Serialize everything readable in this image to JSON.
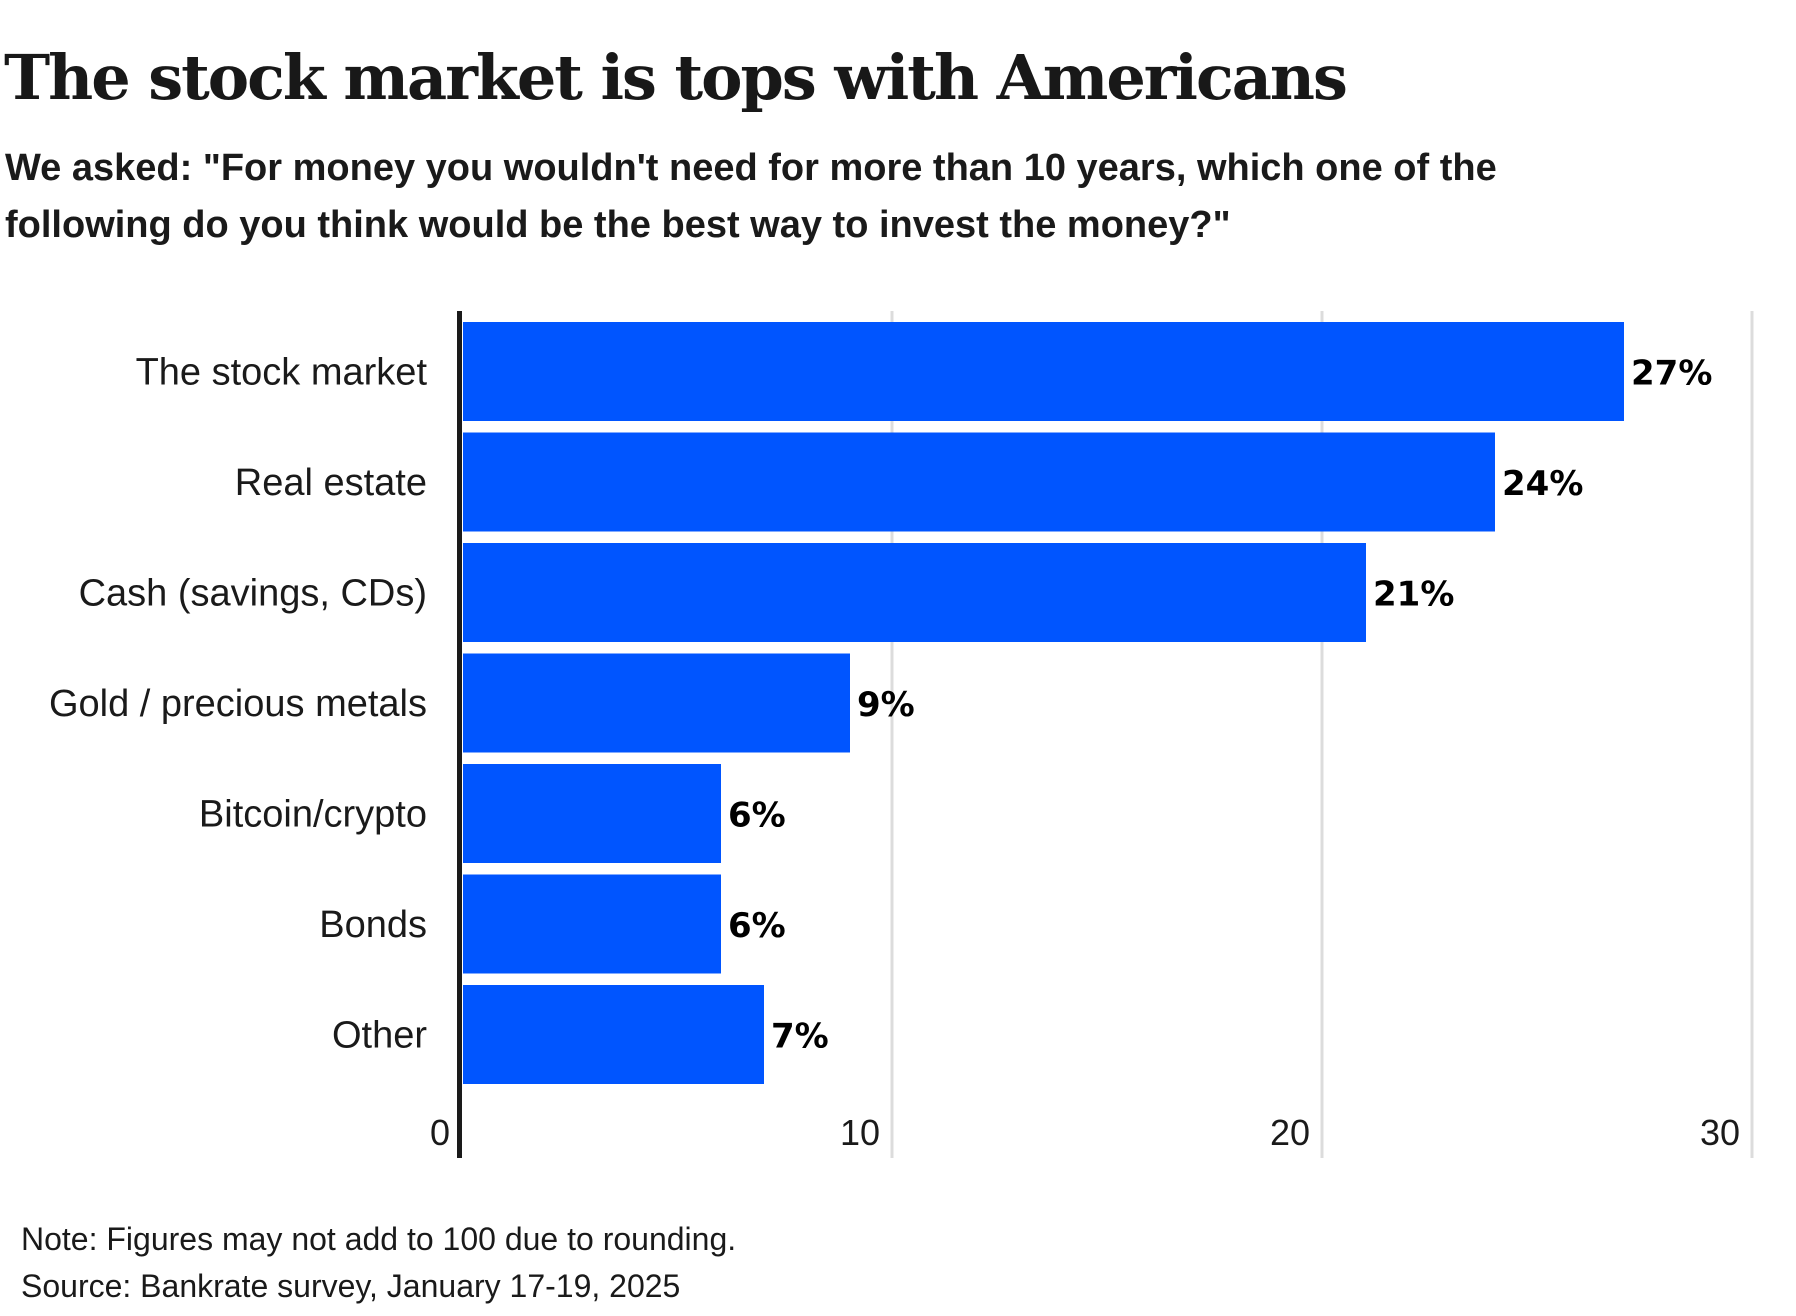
{
  "title": "The stock market is tops with Americans",
  "subtitle": {
    "line1": "We asked: \"For money you wouldn't need for more than 10 years, which one of the",
    "line2": "following do you think would be the best way to invest the money?\""
  },
  "footer": {
    "note": "Note: Figures may not add to 100 due to rounding.",
    "source": "Source: Bankrate survey, January 17-19, 2025"
  },
  "colors": {
    "bar": "#0055FF",
    "axis": "#1a1a1a",
    "grid": "#dcdcdc",
    "text": "#1a1a1a"
  },
  "chart_data": {
    "type": "bar",
    "orientation": "horizontal",
    "title": "The stock market is tops with Americans",
    "subtitle": "We asked: \"For money you wouldn't need for more than 10 years, which one of the following do you think would be the best way to invest the money?\"",
    "categories": [
      "The stock market",
      "Real estate",
      "Cash (savings, CDs)",
      "Gold / precious metals",
      "Bitcoin/crypto",
      "Bonds",
      "Other"
    ],
    "values": [
      27,
      24,
      21,
      9,
      6,
      6,
      7
    ],
    "value_labels": [
      "27%",
      "24%",
      "21%",
      "9%",
      "6%",
      "6%",
      "7%"
    ],
    "xlabel": "",
    "ylabel": "",
    "xlim": [
      0,
      30
    ],
    "xticks": [
      0,
      10,
      20,
      30
    ],
    "xtick_labels": [
      "0",
      "10",
      "20",
      "30"
    ],
    "grid": true,
    "legend": "none",
    "unit": "%"
  }
}
